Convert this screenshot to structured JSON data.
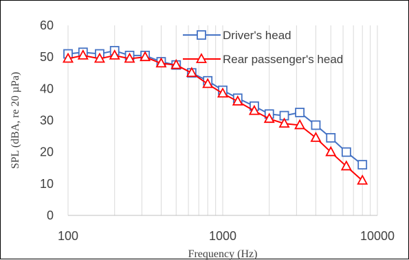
{
  "chart_data": {
    "type": "line",
    "title": "",
    "xlabel": "Frequency (Hz)",
    "ylabel": "SPL (dBA, re 20 µPa)",
    "x_scale": "log",
    "xlim": [
      100,
      10000
    ],
    "ylim": [
      0,
      60
    ],
    "x_ticks": [
      100,
      1000,
      10000
    ],
    "x_tick_labels": [
      "100",
      "1000",
      "10000"
    ],
    "y_ticks": [
      0,
      10,
      20,
      30,
      40,
      50,
      60
    ],
    "y_tick_labels": [
      "0",
      "10",
      "20",
      "30",
      "40",
      "50",
      "60"
    ],
    "grid": {
      "vertical": true,
      "horizontal": false
    },
    "legend_position": "top-right",
    "x": [
      100,
      125,
      160,
      200,
      250,
      315,
      400,
      500,
      630,
      800,
      1000,
      1250,
      1600,
      2000,
      2500,
      3150,
      4000,
      5000,
      6300,
      8000
    ],
    "series": [
      {
        "name": "Driver's head",
        "color": "#4472c4",
        "marker": "square",
        "values": [
          51,
          51.5,
          51,
          52,
          50.5,
          50.5,
          48.5,
          47.5,
          45,
          42.5,
          39.5,
          37,
          34.5,
          32,
          31.5,
          32.5,
          28.5,
          24.5,
          20,
          16
        ]
      },
      {
        "name": "Rear passenger's head",
        "color": "#ff0000",
        "marker": "triangle",
        "values": [
          49.5,
          50.5,
          49.5,
          50.5,
          49.5,
          50,
          48,
          47.5,
          45,
          41.5,
          38.5,
          36,
          33,
          30.5,
          29,
          28.5,
          24.5,
          20,
          15.5,
          11
        ]
      }
    ]
  }
}
